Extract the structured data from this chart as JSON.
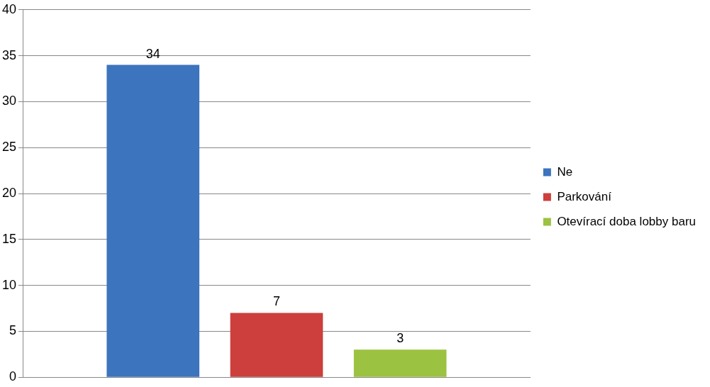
{
  "chart_data": {
    "type": "bar",
    "categories": [
      null
    ],
    "series": [
      {
        "name": "Ne",
        "color": "#3c74bd",
        "values": [
          34
        ]
      },
      {
        "name": "Parkování",
        "color": "#cc3f3c",
        "values": [
          7
        ]
      },
      {
        "name": "Otevírací doba lobby baru",
        "color": "#9cc241",
        "values": [
          3
        ]
      }
    ],
    "ylim": [
      0,
      40
    ],
    "yticks": [
      0,
      5,
      10,
      15,
      20,
      25,
      30,
      35,
      40
    ],
    "grid": "y",
    "legend": "right",
    "data_labels": true
  }
}
